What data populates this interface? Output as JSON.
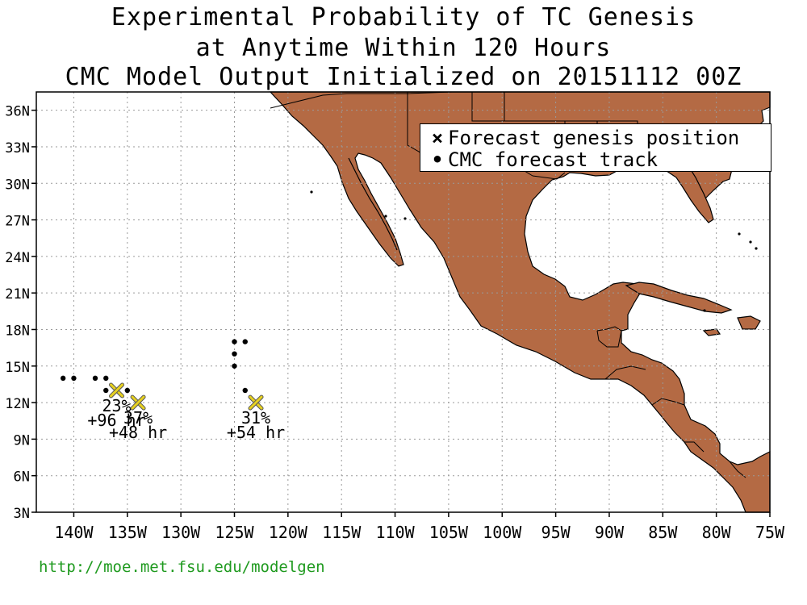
{
  "title": {
    "line1": "Experimental Probability of TC Genesis",
    "line2": "at Anytime Within 120 Hours",
    "line3": "CMC Model Output Initialized on 20151112 00Z"
  },
  "legend": {
    "genesis_label": "Forecast genesis position",
    "track_label": "CMC forecast track"
  },
  "axes": {
    "lat_labels": [
      "36N",
      "33N",
      "30N",
      "27N",
      "24N",
      "21N",
      "18N",
      "15N",
      "12N",
      "9N",
      "6N",
      "3N"
    ],
    "lat_values": [
      36,
      33,
      30,
      27,
      24,
      21,
      18,
      15,
      12,
      9,
      6,
      3
    ],
    "lon_labels": [
      "140W",
      "135W",
      "130W",
      "125W",
      "120W",
      "115W",
      "110W",
      "105W",
      "100W",
      "95W",
      "90W",
      "85W",
      "80W",
      "75W"
    ],
    "lon_values": [
      -140,
      -135,
      -130,
      -125,
      -120,
      -115,
      -110,
      -105,
      -100,
      -95,
      -90,
      -85,
      -80,
      -75
    ],
    "lon_range": [
      -143.5,
      -75
    ],
    "lat_range": [
      3,
      37.5
    ]
  },
  "colors": {
    "land": "#b46a44",
    "grid": "#9a9a9a",
    "genesis_marker": "#e6d020",
    "url": "#1f9a1f"
  },
  "genesis_points": [
    {
      "lon": -136.0,
      "lat": 13.0,
      "prob": "23%",
      "lead": "+96 hr"
    },
    {
      "lon": -134.0,
      "lat": 12.0,
      "prob": "37%",
      "lead": "+48 hr"
    },
    {
      "lon": -123.0,
      "lat": 12.0,
      "prob": "31%",
      "lead": "+54 hr"
    }
  ],
  "track_points": [
    {
      "lon": -141.0,
      "lat": 14.0
    },
    {
      "lon": -140.0,
      "lat": 14.0
    },
    {
      "lon": -138.0,
      "lat": 14.0
    },
    {
      "lon": -137.0,
      "lat": 14.0
    },
    {
      "lon": -137.0,
      "lat": 13.0
    },
    {
      "lon": -135.0,
      "lat": 13.0
    },
    {
      "lon": -124.0,
      "lat": 17.0
    },
    {
      "lon": -125.0,
      "lat": 17.0
    },
    {
      "lon": -125.0,
      "lat": 16.0
    },
    {
      "lon": -125.0,
      "lat": 15.0
    },
    {
      "lon": -124.0,
      "lat": 13.0
    }
  ],
  "footer": {
    "url": "http://moe.met.fsu.edu/modelgen"
  }
}
